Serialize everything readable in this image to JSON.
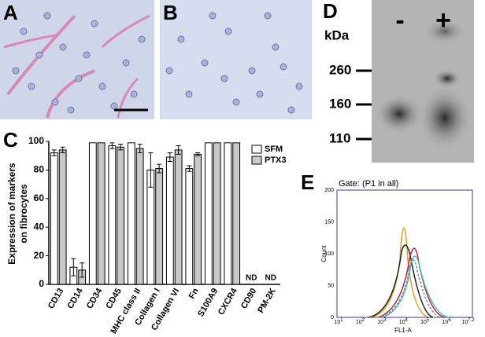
{
  "chart_data": {
    "type": "bar",
    "panel_label": "C",
    "ylabel": [
      "Expression of markers",
      "on fibrocytes"
    ],
    "categories": [
      "CD13",
      "CD14",
      "CD34",
      "CD45",
      "MHC class II",
      "Collagen I",
      "Collagen VI",
      "Fn",
      "S100A9",
      "CXCR4",
      "CD90",
      "PM-2K"
    ],
    "series": [
      {
        "name": "SFM",
        "color": "#ffffff",
        "values": [
          92,
          12,
          99,
          97,
          99,
          80,
          89,
          81,
          99,
          99,
          null,
          null
        ],
        "errors": [
          2,
          6,
          0,
          2,
          0,
          12,
          3,
          2,
          0,
          0,
          null,
          null
        ],
        "value_labels": [
          null,
          null,
          null,
          null,
          null,
          null,
          null,
          null,
          null,
          null,
          "ND",
          "ND"
        ]
      },
      {
        "name": "PTX3",
        "color": "#c8c8c8",
        "values": [
          94,
          10,
          99,
          96,
          95,
          81,
          94,
          91,
          99,
          99,
          null,
          null
        ],
        "errors": [
          2,
          5,
          0,
          2,
          3,
          3,
          3,
          1,
          0,
          0,
          null,
          null
        ]
      }
    ],
    "ylim": [
      0,
      100
    ],
    "yticks": [
      0,
      20,
      40,
      60,
      80,
      100
    ],
    "legend": "top-right"
  },
  "panels": {
    "A": {
      "label": "A"
    },
    "B": {
      "label": "B"
    },
    "D": {
      "label": "D",
      "unit": "kDa",
      "lanes": [
        "-",
        "+"
      ],
      "markers": [
        260,
        160,
        110
      ]
    },
    "E": {
      "label": "E",
      "gate": "Gate: (P1 in all)",
      "ylabel": "Count",
      "xlabel": "FL1-A",
      "yticks": [
        0,
        50,
        100,
        150,
        200
      ],
      "xticks": [
        {
          "base": "10",
          "exp": "1"
        },
        {
          "base": "10",
          "exp": "2"
        },
        {
          "base": "10",
          "exp": "3"
        },
        {
          "base": "10",
          "exp": "4"
        },
        {
          "base": "10",
          "exp": "5"
        },
        {
          "base": "10",
          "exp": "6"
        },
        {
          "base": "10",
          "exp": "7.2"
        }
      ]
    }
  }
}
